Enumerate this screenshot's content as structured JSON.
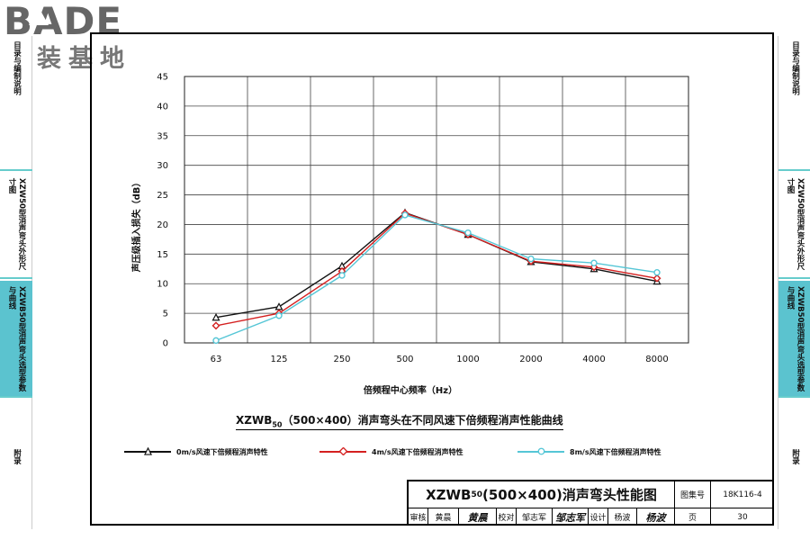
{
  "logo": {
    "main": "BADE",
    "sub": "建装基地"
  },
  "sidebar_left": {
    "tabs": [
      {
        "label": "目录与编制说明",
        "active": false
      },
      {
        "label": "XZW50型消声弯头外形尺寸图",
        "active": false
      },
      {
        "label": "XZWB50型消声弯头选型参数与曲线",
        "active": true
      },
      {
        "label": "附录",
        "active": false
      }
    ]
  },
  "sidebar_right": {
    "tabs": [
      {
        "label": "目录与编制说明",
        "active": false
      },
      {
        "label": "XZW50型消声弯头外形尺寸图",
        "active": false
      },
      {
        "label": "XZWB50型消声弯头选型参数与曲线",
        "active": true
      },
      {
        "label": "附录",
        "active": false
      }
    ]
  },
  "chart_data": {
    "type": "line",
    "categories": [
      "63",
      "125",
      "250",
      "500",
      "1000",
      "2000",
      "4000",
      "8000"
    ],
    "xlabel": "倍频程中心频率（Hz）",
    "ylabel": "声压级插入损失（dB）",
    "ylim": [
      0,
      45
    ],
    "yticks": [
      "0",
      "5",
      "10",
      "15",
      "20",
      "25",
      "30",
      "35",
      "40",
      "45"
    ],
    "grid": true,
    "legend_position": "bottom",
    "series": [
      {
        "name": "0m/s风速下倍频程消声特性",
        "color": "#111111",
        "marker": "triangle",
        "values": [
          4.3,
          6.1,
          13.0,
          22.0,
          18.3,
          13.7,
          12.5,
          10.4
        ]
      },
      {
        "name": "4m/s风速下倍频程消声特性",
        "color": "#d42020",
        "marker": "diamond",
        "values": [
          2.9,
          5.0,
          12.1,
          21.9,
          18.3,
          13.8,
          12.8,
          10.9
        ]
      },
      {
        "name": "8m/s风速下倍频程消声特性",
        "color": "#55c6d6",
        "marker": "circle",
        "values": [
          0.4,
          4.6,
          11.4,
          21.6,
          18.6,
          14.2,
          13.5,
          11.9
        ]
      }
    ]
  },
  "caption": {
    "prefix": "XZWB",
    "sub": "50",
    "suffix": "（500×400）消声弯头在不同风速下倍频程消声性能曲线"
  },
  "title_block": {
    "title_prefix": "XZWB",
    "title_sub": "50",
    "title_suffix": "(500×400)消声弯头性能图",
    "atlas_label": "图集号",
    "atlas_no": "18K116-4",
    "review_label": "审核",
    "review_name": "黄晨",
    "review_sig": "黄晨",
    "check_label": "校对",
    "check_name": "邹志军",
    "check_sig": "邹志军",
    "design_label": "设计",
    "design_name": "杨波",
    "design_sig": "杨波",
    "page_label": "页",
    "page_no": "30"
  }
}
